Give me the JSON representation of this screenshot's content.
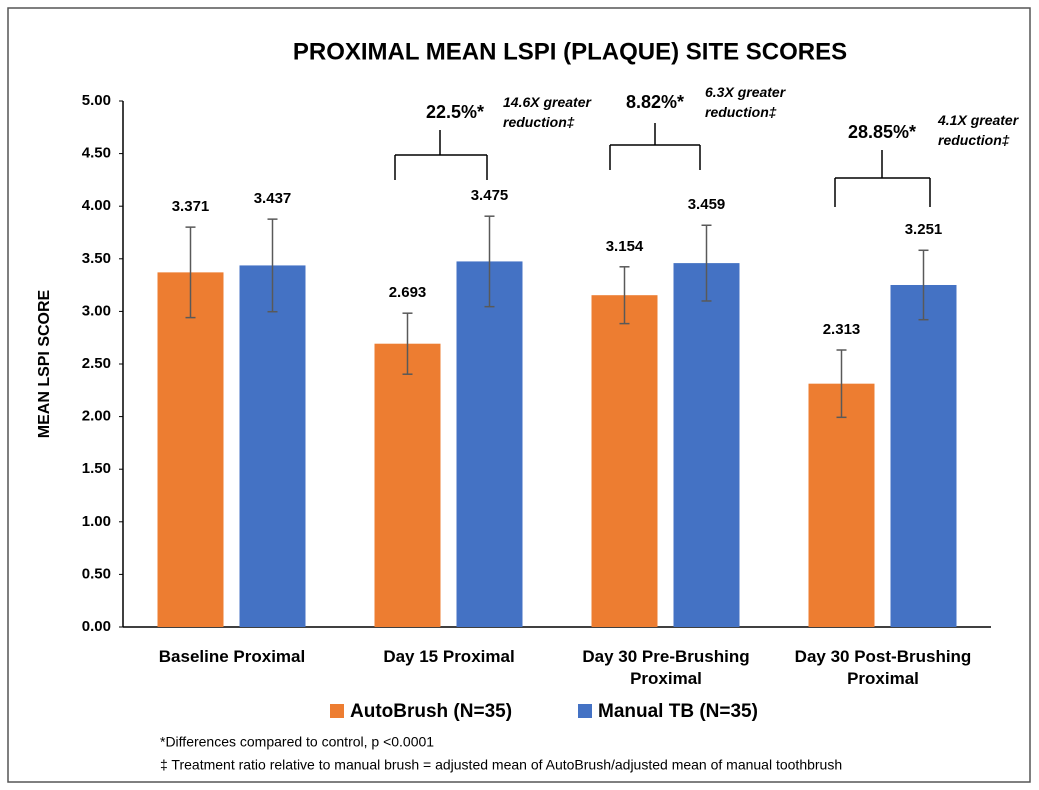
{
  "chart_data": {
    "type": "bar",
    "title": "PROXIMAL MEAN LSPI (PLAQUE) SITE SCORES",
    "y_label": "MEAN LSPI SCORE",
    "categories": [
      "Baseline Proximal",
      "Day 15 Proximal",
      "Day 30 Pre-Brushing Proximal",
      "Day 30 Post-Brushing Proximal"
    ],
    "series": [
      {
        "name": "AutoBrush (N=35)",
        "color": "#ed7d31",
        "values": [
          3.371,
          2.693,
          3.154,
          2.313
        ],
        "errors": [
          0.43,
          0.29,
          0.27,
          0.32
        ]
      },
      {
        "name": "Manual TB (N=35)",
        "color": "#4472c4",
        "values": [
          3.437,
          3.475,
          3.459,
          3.251
        ],
        "errors": [
          0.44,
          0.43,
          0.36,
          0.33
        ]
      }
    ],
    "ylim": [
      0,
      5
    ],
    "yticks": [
      {
        "value": 0,
        "label": "0.00"
      },
      {
        "value": 0.5,
        "label": "0.50"
      },
      {
        "value": 1,
        "label": "1.00"
      },
      {
        "value": 1.5,
        "label": "1.50"
      },
      {
        "value": 2,
        "label": "2.00"
      },
      {
        "value": 2.5,
        "label": "2.50"
      },
      {
        "value": 3,
        "label": "3.00"
      },
      {
        "value": 3.5,
        "label": "3.50"
      },
      {
        "value": 4,
        "label": "4.00"
      },
      {
        "value": 4.5,
        "label": "4.50"
      },
      {
        "value": 5,
        "label": "5.00"
      }
    ],
    "legend": "bottom",
    "annotations": [
      {
        "text": "22.5%*",
        "note": "14.6X greater reduction‡"
      },
      {
        "text": "8.82%*",
        "note": "6.3X greater reduction‡"
      },
      {
        "text": "28.85%*",
        "note": "4.1X greater reduction‡"
      }
    ],
    "footnotes": [
      "*Differences compared to control, p <0.0001",
      "‡ Treatment ratio relative to manual brush = adjusted mean of AutoBrush/adjusted mean of manual toothbrush"
    ]
  }
}
